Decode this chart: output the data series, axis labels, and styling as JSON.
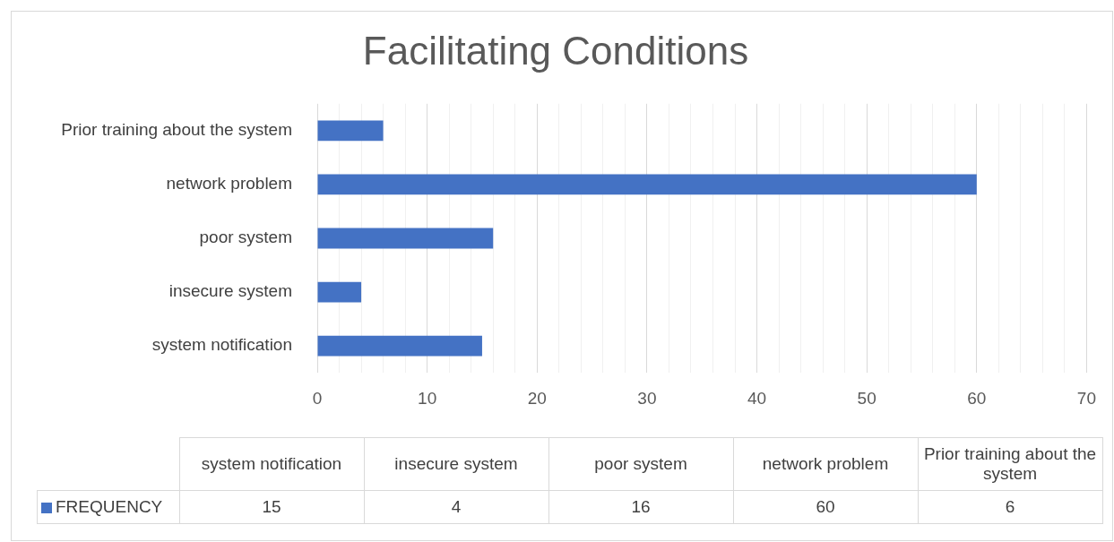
{
  "chart_data": [
    {
      "type": "bar",
      "orientation": "horizontal",
      "title": "Facilitating Conditions",
      "categories": [
        "Prior training about the system",
        "network problem",
        "poor system",
        "insecure system",
        "system notification"
      ],
      "series": [
        {
          "color": "#4472c4",
          "values": [
            6,
            60,
            16,
            4,
            15
          ]
        }
      ],
      "xlim": [
        0,
        70
      ],
      "xticks": [
        0,
        {
          "value": 2,
          "label": null
        },
        {
          "value": 4,
          "label": null
        },
        {
          "value": 6,
          "label": null
        },
        {
          "value": 8,
          "label": null
        },
        10,
        {
          "value": 12,
          "label": null
        },
        {
          "value": 14,
          "label": null
        },
        {
          "value": 16,
          "label": null
        },
        {
          "value": 18,
          "label": null
        },
        20,
        {
          "value": 22,
          "label": null
        },
        {
          "value": 24,
          "label": null
        },
        {
          "value": 26,
          "label": null
        },
        {
          "value": 28,
          "label": null
        },
        30,
        {
          "value": 32,
          "label": null
        },
        {
          "value": 34,
          "label": null
        },
        {
          "value": 36,
          "label": null
        },
        {
          "value": 38,
          "label": null
        },
        40,
        {
          "value": 42,
          "label": null
        },
        {
          "value": 44,
          "label": null
        },
        {
          "value": 46,
          "label": null
        },
        {
          "value": 48,
          "label": null
        },
        50,
        {
          "value": 52,
          "label": null
        },
        {
          "value": 54,
          "label": null
        },
        {
          "value": 56,
          "label": null
        },
        {
          "value": 58,
          "label": null
        },
        60,
        {
          "value": 62,
          "label": null
        },
        {
          "value": 64,
          "label": null
        },
        {
          "value": 66,
          "label": null
        },
        {
          "value": 68,
          "label": null
        },
        70
      ],
      "grid": "x"
    },
    {
      "type": "other",
      "categories": [
        "system notification",
        "insecure system",
        "poor system",
        "network problem",
        "Prior training about the system"
      ],
      "series": [
        {
          "name": "FREQUENCY",
          "color": "#4472c4",
          "values": [
            15,
            4,
            16,
            60,
            6
          ]
        }
      ],
      "legend": "left",
      "data_labels": true
    }
  ]
}
